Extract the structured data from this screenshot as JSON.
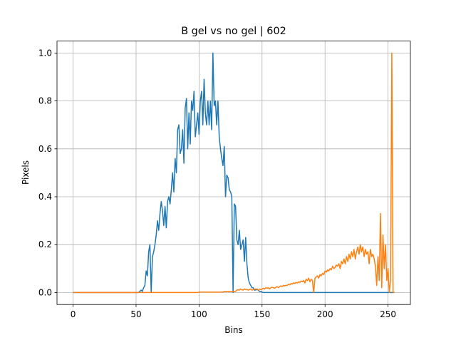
{
  "chart_data": {
    "type": "line",
    "title": "B gel vs no gel | 602",
    "xlabel": "Bins",
    "ylabel": "Pixels",
    "x": [
      0,
      1,
      2,
      3,
      4,
      5,
      6,
      7,
      8,
      9,
      10,
      11,
      12,
      13,
      14,
      15,
      16,
      17,
      18,
      19,
      20,
      21,
      22,
      23,
      24,
      25,
      26,
      27,
      28,
      29,
      30,
      31,
      32,
      33,
      34,
      35,
      36,
      37,
      38,
      39,
      40,
      41,
      42,
      43,
      44,
      45,
      46,
      47,
      48,
      49,
      50,
      51,
      52,
      53,
      54,
      55,
      56,
      57,
      58,
      59,
      60,
      61,
      62,
      63,
      64,
      65,
      66,
      67,
      68,
      69,
      70,
      71,
      72,
      73,
      74,
      75,
      76,
      77,
      78,
      79,
      80,
      81,
      82,
      83,
      84,
      85,
      86,
      87,
      88,
      89,
      90,
      91,
      92,
      93,
      94,
      95,
      96,
      97,
      98,
      99,
      100,
      101,
      102,
      103,
      104,
      105,
      106,
      107,
      108,
      109,
      110,
      111,
      112,
      113,
      114,
      115,
      116,
      117,
      118,
      119,
      120,
      121,
      122,
      123,
      124,
      125,
      126,
      127,
      128,
      129,
      130,
      131,
      132,
      133,
      134,
      135,
      136,
      137,
      138,
      139,
      140,
      141,
      142,
      143,
      144,
      145,
      146,
      147,
      148,
      149,
      150,
      151,
      152,
      153,
      154,
      155,
      156,
      157,
      158,
      159,
      160,
      161,
      162,
      163,
      164,
      165,
      166,
      167,
      168,
      169,
      170,
      171,
      172,
      173,
      174,
      175,
      176,
      177,
      178,
      179,
      180,
      181,
      182,
      183,
      184,
      185,
      186,
      187,
      188,
      189,
      190,
      191,
      192,
      193,
      194,
      195,
      196,
      197,
      198,
      199,
      200,
      201,
      202,
      203,
      204,
      205,
      206,
      207,
      208,
      209,
      210,
      211,
      212,
      213,
      214,
      215,
      216,
      217,
      218,
      219,
      220,
      221,
      222,
      223,
      224,
      225,
      226,
      227,
      228,
      229,
      230,
      231,
      232,
      233,
      234,
      235,
      236,
      237,
      238,
      239,
      240,
      241,
      242,
      243,
      244,
      245,
      246,
      247,
      248,
      249,
      250,
      251,
      252,
      253,
      254,
      255
    ],
    "series": [
      {
        "color": "#1f77b4",
        "values": [
          0,
          0,
          0,
          0,
          0,
          0,
          0,
          0,
          0,
          0,
          0,
          0,
          0,
          0,
          0,
          0,
          0,
          0,
          0,
          0,
          0,
          0,
          0,
          0,
          0,
          0,
          0,
          0,
          0,
          0,
          0,
          0,
          0,
          0,
          0,
          0,
          0,
          0,
          0,
          0,
          0,
          0,
          0,
          0,
          0,
          0,
          0,
          0,
          0,
          0,
          0,
          0,
          0,
          0.005,
          0.01,
          0.005,
          0.02,
          0.03,
          0.09,
          0.07,
          0.17,
          0.2,
          0.0,
          0.15,
          0.17,
          0.2,
          0.24,
          0.3,
          0.26,
          0.33,
          0.38,
          0.34,
          0.28,
          0.36,
          0.27,
          0.38,
          0.4,
          0.37,
          0.43,
          0.5,
          0.42,
          0.56,
          0.5,
          0.68,
          0.7,
          0.58,
          0.6,
          0.68,
          0.54,
          0.77,
          0.81,
          0.6,
          0.75,
          0.62,
          0.8,
          0.76,
          0.84,
          0.65,
          0.7,
          0.75,
          0.66,
          0.8,
          0.84,
          0.7,
          0.89,
          0.75,
          0.7,
          0.8,
          0.7,
          0.8,
          0.68,
          1.0,
          0.78,
          0.8,
          0.7,
          0.8,
          0.65,
          0.6,
          0.56,
          0.53,
          0.61,
          0.4,
          0.49,
          0.48,
          0.43,
          0.42,
          0.4,
          0.0,
          0.37,
          0.36,
          0.22,
          0.2,
          0.26,
          0.18,
          0.2,
          0.22,
          0.13,
          0.23,
          0.12,
          0.06,
          0.04,
          0.03,
          0.02,
          0.02,
          0.01,
          0.01,
          0.015,
          0.01,
          0.005,
          0.005,
          0.002,
          0,
          0,
          0,
          0,
          0,
          0,
          0,
          0,
          0,
          0,
          0,
          0,
          0,
          0,
          0,
          0,
          0,
          0,
          0,
          0,
          0,
          0,
          0,
          0,
          0,
          0,
          0,
          0,
          0,
          0,
          0,
          0,
          0,
          0,
          0,
          0,
          0,
          0,
          0,
          0,
          0,
          0,
          0,
          0,
          0,
          0,
          0,
          0,
          0,
          0,
          0,
          0,
          0,
          0,
          0,
          0,
          0,
          0,
          0,
          0,
          0,
          0,
          0,
          0,
          0,
          0,
          0,
          0,
          0,
          0,
          0,
          0,
          0,
          0,
          0,
          0,
          0,
          0,
          0,
          0,
          0,
          0,
          0,
          0,
          0,
          0,
          0,
          0,
          0,
          0,
          0,
          0,
          0,
          0,
          0,
          0,
          0,
          0,
          0,
          0,
          0,
          0,
          0,
          0,
          0
        ]
      },
      {
        "color": "#ff7f0e",
        "values": [
          0,
          0,
          0,
          0,
          0,
          0,
          0,
          0,
          0,
          0,
          0,
          0,
          0,
          0,
          0,
          0,
          0,
          0,
          0,
          0,
          0,
          0,
          0,
          0,
          0,
          0,
          0,
          0,
          0,
          0,
          0,
          0,
          0,
          0,
          0,
          0,
          0,
          0,
          0,
          0,
          0,
          0,
          0,
          0,
          0,
          0,
          0,
          0,
          0,
          0,
          0,
          0,
          0,
          0,
          0,
          0,
          0,
          0,
          0,
          0,
          0,
          0,
          0,
          0,
          0,
          0,
          0,
          0,
          0,
          0,
          0,
          0,
          0,
          0,
          0,
          0,
          0,
          0,
          0,
          0,
          0,
          0,
          0,
          0,
          0,
          0,
          0,
          0,
          0,
          0,
          0,
          0,
          0,
          0,
          0,
          0,
          0,
          0,
          0,
          0,
          0.002,
          0.002,
          0.002,
          0.002,
          0.002,
          0.002,
          0.002,
          0.002,
          0.002,
          0.002,
          0.002,
          0.002,
          0.002,
          0.002,
          0.002,
          0.002,
          0.002,
          0.002,
          0.002,
          0.002,
          0.005,
          0.005,
          0.005,
          0.005,
          0.005,
          0.005,
          0.005,
          0.005,
          0.005,
          0.005,
          0.01,
          0.012,
          0.01,
          0.015,
          0.012,
          0.01,
          0.015,
          0.012,
          0.014,
          0.01,
          0.012,
          0.015,
          0.01,
          0.012,
          0.014,
          0.015,
          0.012,
          0.01,
          0.015,
          0.012,
          0.015,
          0.018,
          0.015,
          0.02,
          0.018,
          0.02,
          0.015,
          0.02,
          0.022,
          0.02,
          0.018,
          0.022,
          0.025,
          0.02,
          0.025,
          0.028,
          0.025,
          0.03,
          0.028,
          0.03,
          0.03,
          0.035,
          0.032,
          0.038,
          0.035,
          0.04,
          0.038,
          0.042,
          0.04,
          0.045,
          0.042,
          0.048,
          0.045,
          0.05,
          0.04,
          0.055,
          0.05,
          0.06,
          0.045,
          0.055,
          0.05,
          0.0,
          0.06,
          0.065,
          0.07,
          0.06,
          0.075,
          0.07,
          0.08,
          0.075,
          0.09,
          0.085,
          0.095,
          0.09,
          0.1,
          0.095,
          0.11,
          0.1,
          0.105,
          0.115,
          0.11,
          0.12,
          0.1,
          0.13,
          0.12,
          0.14,
          0.12,
          0.15,
          0.13,
          0.16,
          0.14,
          0.17,
          0.15,
          0.18,
          0.14,
          0.17,
          0.19,
          0.16,
          0.2,
          0.17,
          0.19,
          0.15,
          0.18,
          0.16,
          0.17,
          0.12,
          0.18,
          0.15,
          0.16,
          0.14,
          0.11,
          0.03,
          0.15,
          0.05,
          0.33,
          0.02,
          0.24,
          0.1,
          0.2,
          0.05,
          0.1,
          0.0,
          0.05,
          1.0,
          0.0,
          0.0
        ]
      }
    ],
    "xlim": [
      -12.75,
      267.75
    ],
    "ylim": [
      -0.05,
      1.05
    ],
    "xticks": [
      0,
      50,
      100,
      150,
      200,
      250
    ],
    "yticks": [
      {
        "value": 0,
        "label": "0.0"
      },
      0.2,
      0.4,
      0.6,
      0.8,
      {
        "value": 1,
        "label": "1.0"
      }
    ],
    "grid": true
  }
}
